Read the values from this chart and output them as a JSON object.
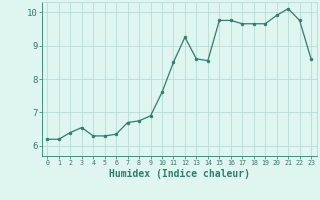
{
  "x": [
    0,
    1,
    2,
    3,
    4,
    5,
    6,
    7,
    8,
    9,
    10,
    11,
    12,
    13,
    14,
    15,
    16,
    17,
    18,
    19,
    20,
    21,
    22,
    23
  ],
  "y": [
    6.2,
    6.2,
    6.4,
    6.55,
    6.3,
    6.3,
    6.35,
    6.7,
    6.75,
    6.9,
    7.6,
    8.5,
    9.25,
    8.6,
    8.55,
    9.75,
    9.75,
    9.65,
    9.65,
    9.65,
    9.9,
    10.1,
    9.75,
    8.6
  ],
  "xlabel": "Humidex (Indice chaleur)",
  "ylim": [
    5.7,
    10.3
  ],
  "xlim": [
    -0.5,
    23.5
  ],
  "yticks": [
    6,
    7,
    8,
    9,
    10
  ],
  "xticks": [
    0,
    1,
    2,
    3,
    4,
    5,
    6,
    7,
    8,
    9,
    10,
    11,
    12,
    13,
    14,
    15,
    16,
    17,
    18,
    19,
    20,
    21,
    22,
    23
  ],
  "line_color": "#2e7d6e",
  "marker_color": "#2e7d6e",
  "bg_color": "#dff5f0",
  "grid_color": "#b8ddd6",
  "axis_label_color": "#2e7d6e",
  "tick_label_color": "#2e7d6e"
}
